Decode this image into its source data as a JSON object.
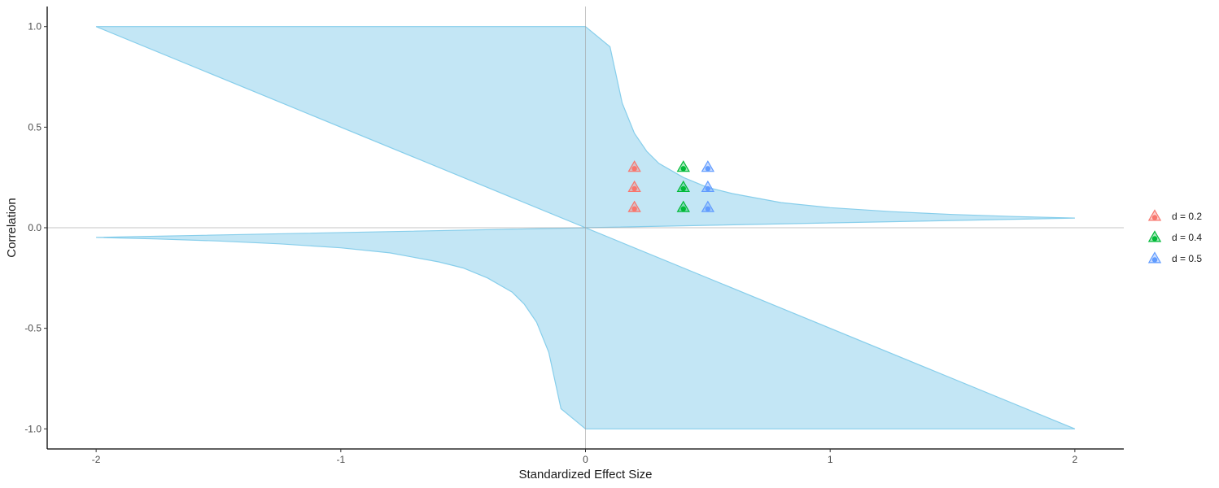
{
  "chart_data": {
    "type": "area",
    "title": "",
    "xlabel": "Standardized Effect Size",
    "ylabel": "Correlation",
    "xlim": [
      -2.2,
      2.2
    ],
    "ylim": [
      -1.1,
      1.1
    ],
    "x_ticks": [
      -2,
      -1,
      0,
      1,
      2
    ],
    "x_tick_labels": [
      "-2",
      "-1",
      "0",
      "1",
      "2"
    ],
    "y_ticks": [
      -1.0,
      -0.5,
      0.0,
      0.5,
      1.0
    ],
    "y_tick_labels": [
      "-1.0",
      "-0.5",
      "0.0",
      "0.5",
      "1.0"
    ],
    "grid": false,
    "reference_lines": {
      "x": 0,
      "y": 0
    },
    "ribbon": {
      "fill": "#87ceeb",
      "stroke": "#87ceeb",
      "upper": [
        [
          -2,
          1.0
        ],
        [
          0,
          1.0
        ],
        [
          0.1,
          0.9
        ],
        [
          0.15,
          0.62
        ],
        [
          0.2,
          0.47
        ],
        [
          0.25,
          0.38
        ],
        [
          0.3,
          0.32
        ],
        [
          0.4,
          0.25
        ],
        [
          0.5,
          0.2
        ],
        [
          0.6,
          0.17
        ],
        [
          0.8,
          0.125
        ],
        [
          1.0,
          0.1
        ],
        [
          1.25,
          0.08
        ],
        [
          1.5,
          0.066
        ],
        [
          1.75,
          0.056
        ],
        [
          2.0,
          0.048
        ]
      ],
      "lower": [
        [
          -2.0,
          -0.048
        ],
        [
          -1.75,
          -0.056
        ],
        [
          -1.5,
          -0.066
        ],
        [
          -1.25,
          -0.08
        ],
        [
          -1.0,
          -0.1
        ],
        [
          -0.8,
          -0.125
        ],
        [
          -0.6,
          -0.17
        ],
        [
          -0.5,
          -0.2
        ],
        [
          -0.4,
          -0.25
        ],
        [
          -0.3,
          -0.32
        ],
        [
          -0.25,
          -0.38
        ],
        [
          -0.2,
          -0.47
        ],
        [
          -0.15,
          -0.62
        ],
        [
          -0.1,
          -0.9
        ],
        [
          0,
          -1.0
        ],
        [
          2,
          -1.0
        ]
      ]
    },
    "series": [
      {
        "name": "d = 0.2",
        "color": "#f8766d",
        "x": [
          0.2,
          0.2,
          0.2
        ],
        "y": [
          0.1,
          0.2,
          0.3
        ]
      },
      {
        "name": "d = 0.4",
        "color": "#00ba38",
        "x": [
          0.4,
          0.4,
          0.4
        ],
        "y": [
          0.1,
          0.2,
          0.3
        ]
      },
      {
        "name": "d = 0.5",
        "color": "#619cff",
        "x": [
          0.5,
          0.5,
          0.5
        ],
        "y": [
          0.1,
          0.2,
          0.3
        ]
      }
    ],
    "marker": "triangle-with-dot",
    "legend_position": "right"
  }
}
